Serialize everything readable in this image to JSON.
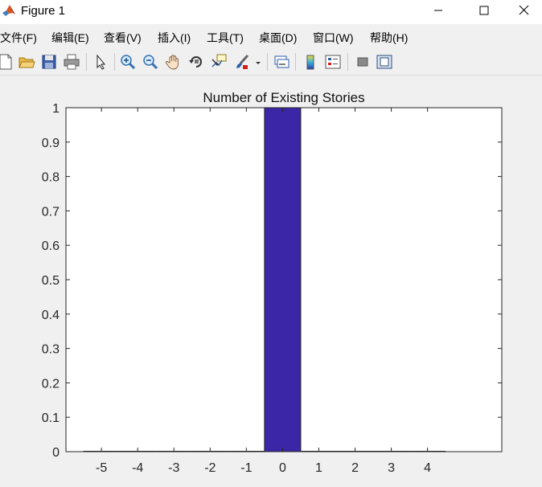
{
  "window": {
    "title": "Figure 1",
    "controls": [
      "minimize",
      "maximize",
      "close"
    ]
  },
  "menu": {
    "items": [
      "文件(F)",
      "编辑(E)",
      "查看(V)",
      "插入(I)",
      "工具(T)",
      "桌面(D)",
      "窗口(W)",
      "帮助(H)"
    ]
  },
  "toolbar": {
    "icons": [
      "new-figure-icon",
      "open-file-icon",
      "save-icon",
      "print-icon",
      "select-arrow-icon",
      "zoom-in-icon",
      "zoom-out-icon",
      "pan-hand-icon",
      "rotate-3d-icon",
      "data-cursor-icon",
      "brush-icon",
      "brush-dropdown-icon",
      "link-plot-icon",
      "colorbar-icon",
      "legend-icon",
      "hide-plot-tools-icon",
      "show-plot-tools-icon"
    ]
  },
  "colors": {
    "bar": "#3a26a6",
    "background": "#f0f0f0",
    "axes": "#ffffff"
  },
  "chart_data": {
    "type": "bar",
    "title": "Number of Existing Stories",
    "xlabel": "",
    "ylabel": "",
    "x": [
      -5,
      -4,
      -3,
      -2,
      -1,
      0,
      1,
      2,
      3,
      4
    ],
    "values": [
      0,
      0,
      0,
      0,
      0,
      1,
      0,
      0,
      0,
      0
    ],
    "xlim": [
      -5.98,
      6.05
    ],
    "ylim": [
      0,
      1
    ],
    "xticks": [
      "-5",
      "-4",
      "-3",
      "-2",
      "-1",
      "0",
      "1",
      "2",
      "3",
      "4"
    ],
    "yticks": [
      "0",
      "0.1",
      "0.2",
      "0.3",
      "0.4",
      "0.5",
      "0.6",
      "0.7",
      "0.8",
      "0.9",
      "1"
    ],
    "grid": false,
    "legend": "none"
  }
}
